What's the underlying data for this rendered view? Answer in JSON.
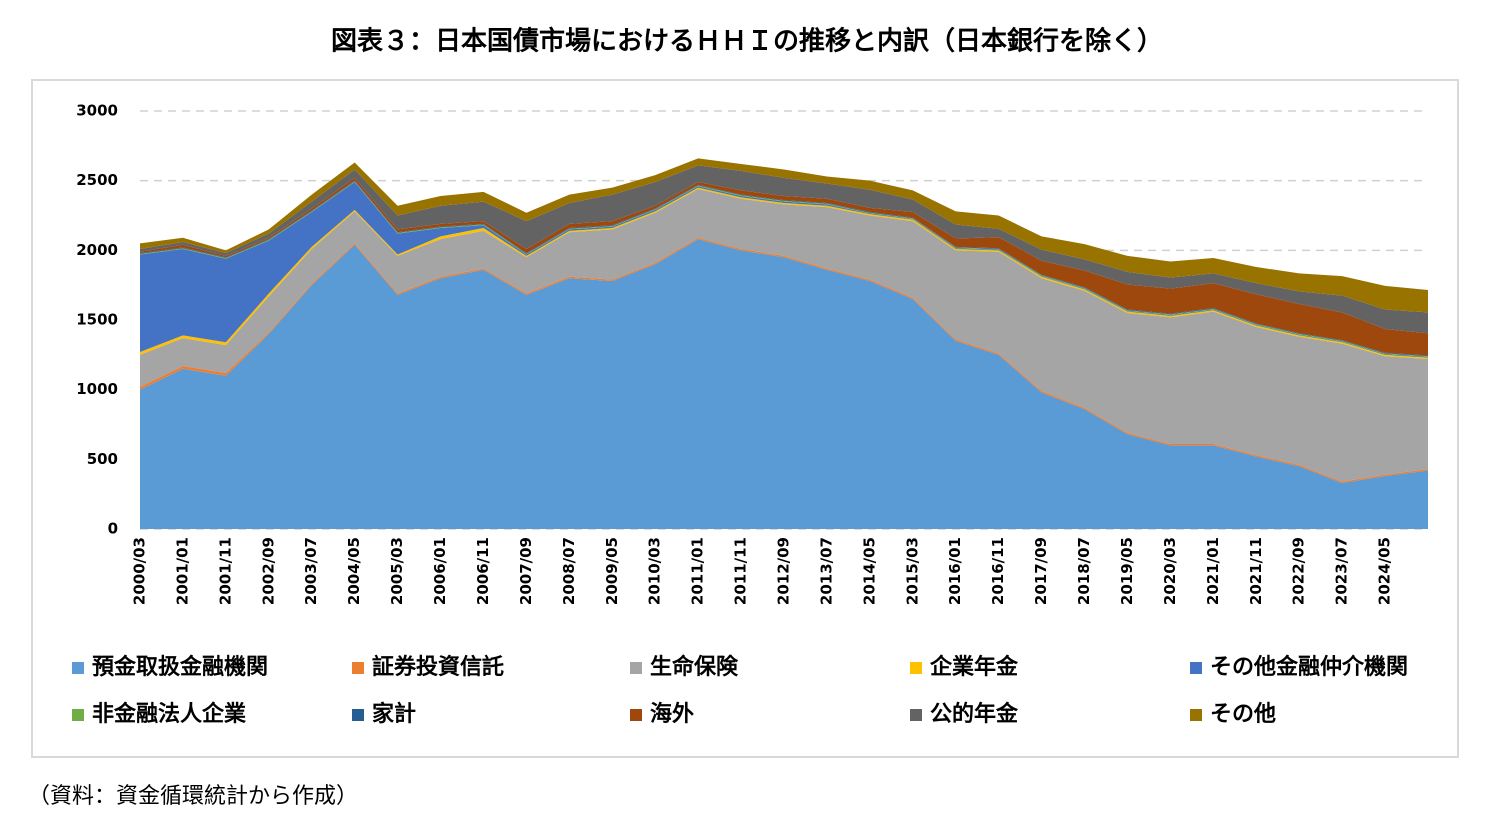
{
  "chart_data": {
    "type": "stacked_area",
    "title": "図表３：日本国債市場におけるＨＨＩの推移と内訳（日本銀行を除く）",
    "source": "（資料：資金循環統計から作成）",
    "categories": [
      "2000/03",
      "2001/01",
      "2001/11",
      "2002/09",
      "2003/07",
      "2004/05",
      "2005/03",
      "2006/01",
      "2006/11",
      "2007/09",
      "2008/07",
      "2009/05",
      "2010/03",
      "2011/01",
      "2011/11",
      "2012/09",
      "2013/07",
      "2014/05",
      "2015/03",
      "2016/01",
      "2016/11",
      "2017/09",
      "2018/07",
      "2019/05",
      "2020/03",
      "2021/01",
      "2021/11",
      "2022/09",
      "2023/07",
      "2024/05",
      null
    ],
    "ylim": [
      0,
      3000
    ],
    "yticks": [
      0,
      500,
      1000,
      1500,
      2000,
      2500,
      3000
    ],
    "grid": true,
    "series": [
      {
        "name": "預金取扱金融機関",
        "color": "#5b9bd5",
        "values": [
          1000,
          1150,
          1100,
          1400,
          1750,
          2040,
          1680,
          1800,
          1860,
          1680,
          1800,
          1780,
          1900,
          2080,
          2000,
          1950,
          1860,
          1780,
          1650,
          1350,
          1250,
          980,
          860,
          680,
          600,
          600,
          520,
          450,
          330,
          380,
          420
        ]
      },
      {
        "name": "証券投資信託",
        "color": "#ed7d31",
        "values": [
          20,
          20,
          20,
          10,
          10,
          10,
          10,
          10,
          10,
          10,
          10,
          10,
          10,
          10,
          10,
          10,
          10,
          10,
          10,
          10,
          10,
          10,
          10,
          10,
          10,
          10,
          10,
          10,
          10,
          10,
          10
        ]
      },
      {
        "name": "生命保険",
        "color": "#a5a5a5",
        "values": [
          230,
          200,
          200,
          260,
          250,
          230,
          270,
          270,
          270,
          260,
          320,
          360,
          360,
          350,
          360,
          370,
          440,
          460,
          550,
          640,
          730,
          810,
          840,
          860,
          910,
          950,
          920,
          920,
          990,
          850,
          790
        ]
      },
      {
        "name": "企業年金",
        "color": "#ffc000",
        "values": [
          20,
          20,
          20,
          20,
          15,
          10,
          10,
          20,
          20,
          10,
          10,
          10,
          10,
          10,
          10,
          10,
          10,
          10,
          10,
          10,
          10,
          10,
          10,
          10,
          10,
          10,
          10,
          10,
          10,
          10,
          10
        ]
      },
      {
        "name": "その他金融仲介機関",
        "color": "#4472c4",
        "values": [
          700,
          620,
          600,
          380,
          250,
          200,
          150,
          60,
          20,
          10,
          10,
          10,
          10,
          10,
          10,
          10,
          10,
          5,
          5,
          5,
          5,
          5,
          5,
          5,
          5,
          5,
          5,
          5,
          5,
          5,
          5
        ]
      },
      {
        "name": "非金融法人企業",
        "color": "#70ad47",
        "values": [
          5,
          5,
          5,
          5,
          5,
          5,
          5,
          5,
          5,
          5,
          5,
          5,
          5,
          5,
          5,
          5,
          5,
          5,
          5,
          5,
          5,
          5,
          5,
          5,
          5,
          5,
          5,
          5,
          5,
          5,
          5
        ]
      },
      {
        "name": "家計",
        "color": "#255e91",
        "values": [
          5,
          5,
          5,
          5,
          5,
          5,
          5,
          5,
          5,
          5,
          5,
          5,
          5,
          5,
          5,
          5,
          5,
          5,
          5,
          5,
          5,
          5,
          5,
          5,
          5,
          5,
          5,
          5,
          5,
          5,
          5
        ]
      },
      {
        "name": "海外",
        "color": "#9e480e",
        "values": [
          10,
          20,
          10,
          10,
          15,
          20,
          20,
          20,
          20,
          30,
          30,
          30,
          20,
          20,
          30,
          30,
          30,
          30,
          40,
          60,
          80,
          100,
          120,
          180,
          180,
          180,
          210,
          210,
          200,
          170,
          160
        ]
      },
      {
        "name": "公的年金",
        "color": "#636363",
        "values": [
          20,
          20,
          20,
          30,
          50,
          60,
          100,
          130,
          140,
          200,
          150,
          190,
          170,
          120,
          140,
          130,
          110,
          130,
          90,
          100,
          60,
          80,
          80,
          90,
          80,
          70,
          80,
          90,
          120,
          140,
          150
        ]
      },
      {
        "name": "その他",
        "color": "#997300",
        "values": [
          40,
          30,
          20,
          30,
          50,
          50,
          70,
          70,
          70,
          60,
          60,
          50,
          50,
          50,
          50,
          60,
          50,
          65,
          65,
          95,
          95,
          95,
          110,
          115,
          115,
          110,
          115,
          130,
          140,
          170,
          160
        ]
      }
    ]
  }
}
